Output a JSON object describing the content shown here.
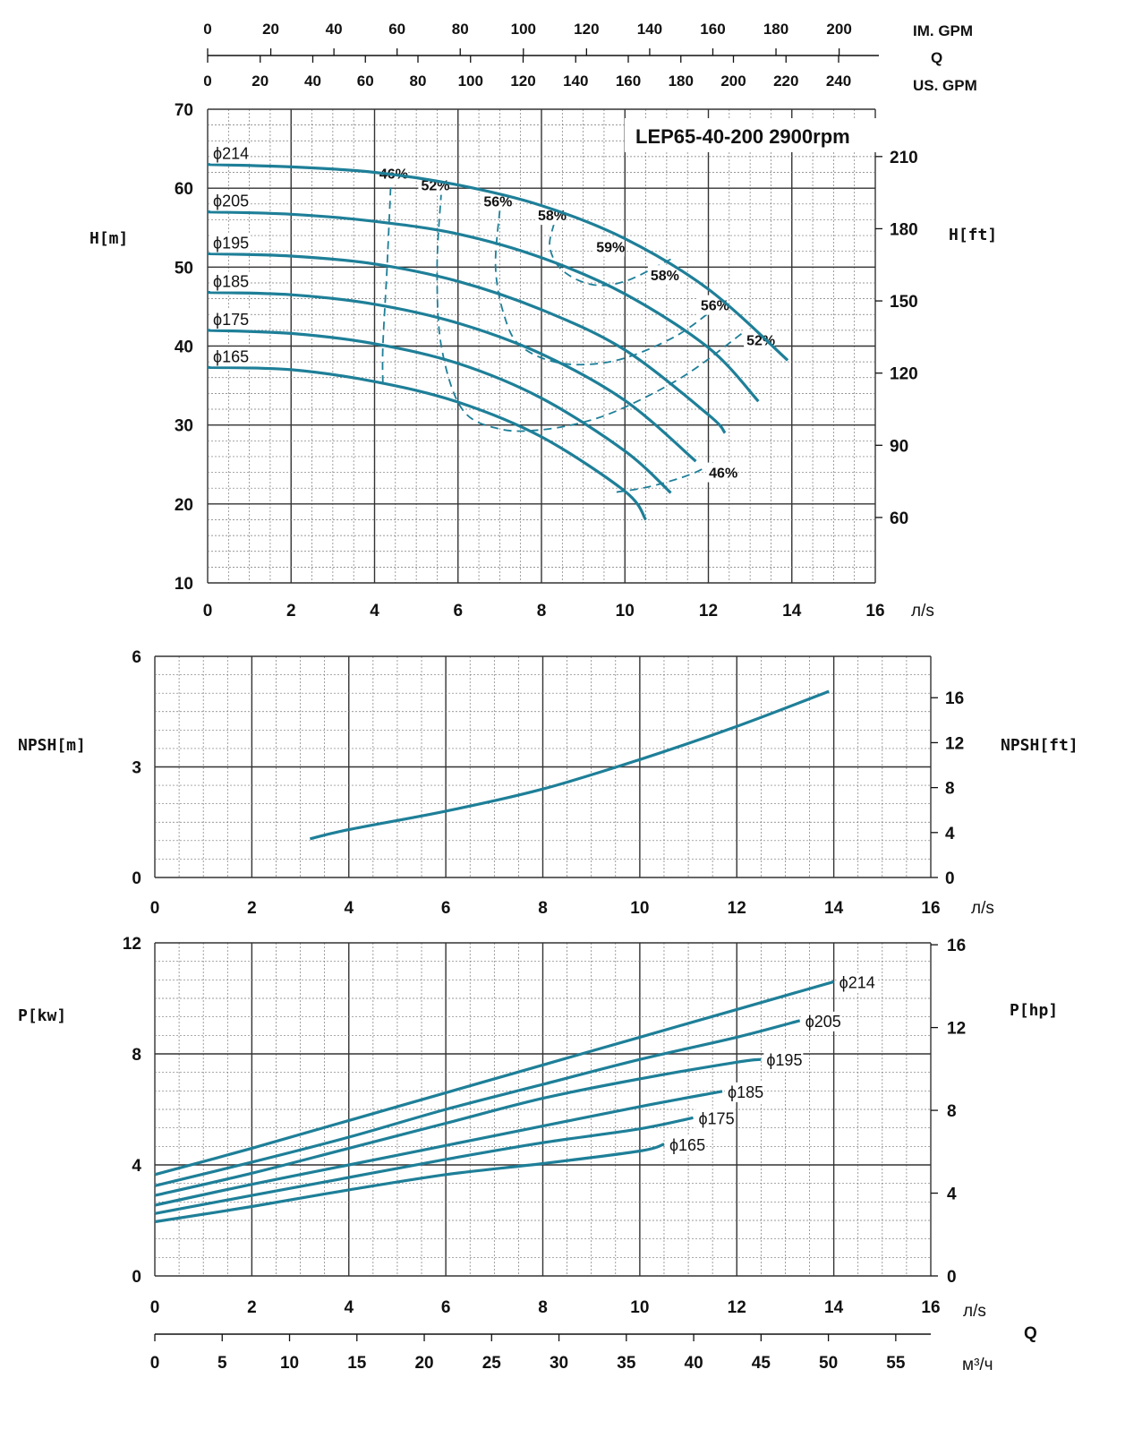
{
  "title": "LEP65-40-200 2900rpm",
  "colors": {
    "curve": "#1e7f98",
    "grid_major": "#333333",
    "grid_minor": "#777777",
    "label_bg": "#ffffff"
  },
  "top_axes": {
    "im_gpm": {
      "label": "IM. GPM",
      "ticks": [
        "0",
        "20",
        "40",
        "60",
        "80",
        "100",
        "120",
        "140",
        "160",
        "180",
        "200"
      ]
    },
    "q_label": "Q",
    "us_gpm": {
      "label": "US. GPM",
      "ticks": [
        "0",
        "20",
        "40",
        "60",
        "80",
        "100",
        "120",
        "140",
        "160",
        "180",
        "200",
        "220",
        "240"
      ]
    }
  },
  "x_unit": "л/s",
  "chart_data": [
    {
      "type": "line",
      "name": "H-Q",
      "title": "LEP65-40-200 2900rpm",
      "ylabel": "H[m]",
      "y2label": "H[ft]",
      "xunit": "л/s",
      "xlim": [
        0,
        16
      ],
      "ylim": [
        10,
        70
      ],
      "xticks": [
        0,
        2,
        4,
        6,
        8,
        10,
        12,
        14,
        16
      ],
      "yticks": [
        10,
        20,
        30,
        40,
        50,
        60,
        70
      ],
      "y2ticks": [
        60,
        90,
        120,
        150,
        180,
        210
      ],
      "grid": true,
      "series": [
        {
          "name": "ϕ214",
          "x": [
            0,
            2,
            4,
            6,
            8,
            10,
            12,
            13.9
          ],
          "y": [
            63,
            62.7,
            62,
            60.4,
            57.8,
            53.6,
            47.2,
            38.2
          ]
        },
        {
          "name": "ϕ205",
          "x": [
            0,
            2,
            4,
            6,
            8,
            10,
            12,
            13.2
          ],
          "y": [
            57,
            56.7,
            55.8,
            54.2,
            51.2,
            46.6,
            39.8,
            33
          ]
        },
        {
          "name": "ϕ195",
          "x": [
            0,
            2,
            4,
            6,
            8,
            10,
            12,
            12.4
          ],
          "y": [
            51.7,
            51.4,
            50.4,
            48.2,
            44.6,
            39.5,
            31.3,
            29
          ]
        },
        {
          "name": "ϕ185",
          "x": [
            0,
            2,
            4,
            6,
            8,
            10,
            11.7
          ],
          "y": [
            46.8,
            46.5,
            45.3,
            42.9,
            39,
            33.1,
            25.4
          ]
        },
        {
          "name": "ϕ175",
          "x": [
            0,
            2,
            4,
            6,
            8,
            10,
            11.1
          ],
          "y": [
            42,
            41.6,
            40.3,
            37.8,
            33.4,
            26.7,
            21.4
          ]
        },
        {
          "name": "ϕ165",
          "x": [
            0,
            2,
            4,
            6,
            8,
            10,
            10.5
          ],
          "y": [
            37.3,
            37,
            35.5,
            32.9,
            28.5,
            21.6,
            18
          ]
        }
      ],
      "efficiency_series": [
        {
          "name": "46%",
          "x": [
            4.4,
            4.3,
            4.2,
            4.2
          ],
          "y": [
            61.8,
            50,
            40,
            35
          ]
        },
        {
          "name": "52%",
          "x": [
            5.6,
            5.5,
            5.6,
            6.1,
            7,
            8,
            9.1,
            10.1,
            11.5,
            12.9
          ],
          "y": [
            59.5,
            50,
            40,
            32,
            29.5,
            29.4,
            30.5,
            32.5,
            36.5,
            42
          ]
        },
        {
          "name": "56%",
          "x": [
            7,
            6.9,
            7.1,
            7.5,
            8.5,
            9.8,
            11.2,
            12.2
          ],
          "y": [
            57.2,
            50,
            44,
            40,
            37.8,
            38.2,
            41.2,
            45
          ]
        },
        {
          "name": "58%",
          "x": [
            8.3,
            8.2,
            8.5,
            9.2,
            10,
            11.1
          ],
          "y": [
            55.5,
            52.5,
            49.6,
            47.8,
            48.2,
            51
          ]
        },
        {
          "name": "46%",
          "x": [
            9.8,
            10.6,
            11.6,
            12.2
          ],
          "y": [
            21.5,
            22.2,
            23.8,
            25.5
          ]
        }
      ],
      "efficiency_labels": [
        "46%",
        "52%",
        "56%",
        "58%",
        "59%",
        "58%",
        "56%",
        "52%",
        "46%"
      ]
    },
    {
      "type": "line",
      "name": "NPSH",
      "ylabel": "NPSH[m]",
      "y2label": "NPSH[ft]",
      "xunit": "л/s",
      "xlim": [
        0,
        16
      ],
      "ylim": [
        0,
        6
      ],
      "xticks": [
        0,
        2,
        4,
        6,
        8,
        10,
        12,
        14,
        16
      ],
      "yticks": [
        0,
        3,
        6
      ],
      "y2ticks": [
        0,
        4,
        8,
        12,
        16
      ],
      "grid": true,
      "series": [
        {
          "x": [
            3.2,
            4,
            6,
            8,
            10,
            12,
            13.9
          ],
          "y": [
            1.05,
            1.3,
            1.8,
            2.4,
            3.2,
            4.1,
            5.05
          ]
        }
      ]
    },
    {
      "type": "line",
      "name": "P-Q",
      "ylabel": "P[kw]",
      "y2label": "P[hp]",
      "xunit": "л/s",
      "xlim": [
        0,
        16
      ],
      "ylim": [
        0,
        12
      ],
      "xticks": [
        0,
        2,
        4,
        6,
        8,
        10,
        12,
        14,
        16
      ],
      "yticks": [
        0,
        4,
        8,
        12
      ],
      "y2ticks": [
        0,
        4,
        8,
        12,
        16
      ],
      "x2label": "Q",
      "x2unit": "м³/ч",
      "x2ticks": [
        0,
        5,
        10,
        15,
        20,
        25,
        30,
        35,
        40,
        45,
        50,
        55
      ],
      "grid": true,
      "series": [
        {
          "name": "ϕ214",
          "x": [
            0,
            2,
            4,
            6,
            8,
            10,
            12,
            14
          ],
          "y": [
            3.65,
            4.6,
            5.6,
            6.6,
            7.6,
            8.6,
            9.6,
            10.6
          ]
        },
        {
          "name": "ϕ205",
          "x": [
            0,
            2,
            4,
            6,
            8,
            10,
            12,
            13.3
          ],
          "y": [
            3.25,
            4.1,
            5.0,
            6.0,
            6.9,
            7.8,
            8.6,
            9.2
          ]
        },
        {
          "name": "ϕ195",
          "x": [
            0,
            2,
            4,
            6,
            8,
            10,
            12,
            12.5
          ],
          "y": [
            2.9,
            3.7,
            4.6,
            5.5,
            6.4,
            7.1,
            7.7,
            7.8
          ]
        },
        {
          "name": "ϕ185",
          "x": [
            0,
            2,
            4,
            6,
            8,
            10,
            11.7
          ],
          "y": [
            2.55,
            3.3,
            4.0,
            4.7,
            5.4,
            6.1,
            6.65
          ]
        },
        {
          "name": "ϕ175",
          "x": [
            0,
            2,
            4,
            6,
            8,
            10,
            11.1
          ],
          "y": [
            2.25,
            2.9,
            3.55,
            4.2,
            4.8,
            5.3,
            5.7
          ]
        },
        {
          "name": "ϕ165",
          "x": [
            0,
            2,
            4,
            6,
            8,
            10,
            10.5
          ],
          "y": [
            1.95,
            2.5,
            3.1,
            3.65,
            4.05,
            4.5,
            4.75
          ]
        }
      ]
    }
  ]
}
